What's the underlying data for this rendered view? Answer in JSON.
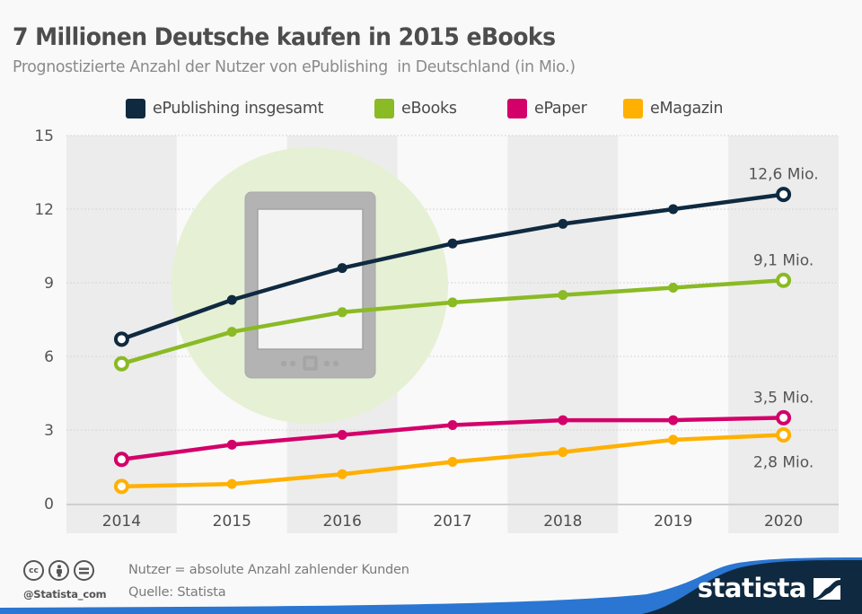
{
  "header": {
    "title": "7 Millionen Deutsche kaufen in 2015 eBooks",
    "subtitle": "Prognostizierte Anzahl der Nutzer von ePublishing  in Deutschland (in Mio.)"
  },
  "legend": [
    {
      "label": "ePublishing insgesamt",
      "color": "#0f2a40"
    },
    {
      "label": "eBooks",
      "color": "#8aba24"
    },
    {
      "label": "ePaper",
      "color": "#d3006a"
    },
    {
      "label": "eMagazin",
      "color": "#ffb000"
    }
  ],
  "chart_data": {
    "type": "line",
    "title": "7 Millionen Deutsche kaufen in 2015 eBooks",
    "subtitle": "Prognostizierte Anzahl der Nutzer von ePublishing  in Deutschland (in Mio.)",
    "xlabel": "",
    "ylabel": "",
    "x": [
      "2014",
      "2015",
      "2016",
      "2017",
      "2018",
      "2019",
      "2020"
    ],
    "ylim": [
      0,
      15
    ],
    "yticks": [
      0,
      3,
      6,
      9,
      12,
      15
    ],
    "grid": true,
    "legend_position": "top-center",
    "series": [
      {
        "name": "ePublishing insgesamt",
        "color": "#0f2a40",
        "values": [
          6.7,
          8.3,
          9.6,
          10.6,
          11.4,
          12.0,
          12.6
        ],
        "end_label": "12,6 Mio.",
        "end_label_position": "above"
      },
      {
        "name": "eBooks",
        "color": "#8aba24",
        "values": [
          5.7,
          7.0,
          7.8,
          8.2,
          8.5,
          8.8,
          9.1
        ],
        "end_label": "9,1 Mio.",
        "end_label_position": "above"
      },
      {
        "name": "ePaper",
        "color": "#d3006a",
        "values": [
          1.8,
          2.4,
          2.8,
          3.2,
          3.4,
          3.4,
          3.5
        ],
        "end_label": "3,5 Mio.",
        "end_label_position": "above"
      },
      {
        "name": "eMagazin",
        "color": "#ffb000",
        "values": [
          0.7,
          0.8,
          1.2,
          1.7,
          2.1,
          2.6,
          2.8
        ],
        "end_label": "2,8 Mio.",
        "end_label_position": "below"
      }
    ],
    "illustration": "e-reader-icon"
  },
  "footer": {
    "license_icons": [
      "cc-icon",
      "attribution-icon",
      "no-derivatives-icon"
    ],
    "cc_text": "cc",
    "handle": "@Statista_com",
    "note": "Nutzer = absolute Anzahl zahlender Kunden",
    "source": "Quelle: Statista",
    "brand": "statista",
    "brand_color": "#0f2a40",
    "accent_color": "#2a76d2"
  }
}
